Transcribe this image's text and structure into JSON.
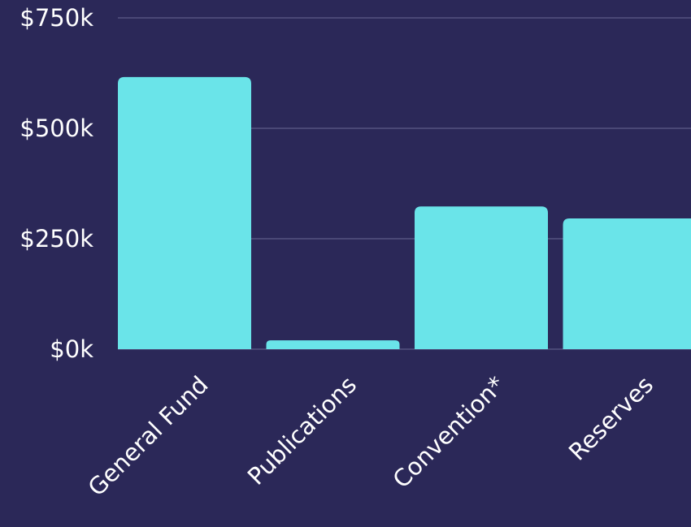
{
  "chart_data": {
    "type": "bar",
    "categories": [
      "General Fund",
      "Publications",
      "Convention*",
      "Reserves"
    ],
    "values": [
      616,
      20,
      323,
      296
    ],
    "color": "#6ae4e9",
    "ylim": [
      0,
      750
    ],
    "yticks": [
      {
        "value": 0,
        "label": "$0k"
      },
      {
        "value": 250,
        "label": "$250k"
      },
      {
        "value": 500,
        "label": "$500k"
      },
      {
        "value": 750,
        "label": "$750k"
      }
    ],
    "grid": true
  }
}
